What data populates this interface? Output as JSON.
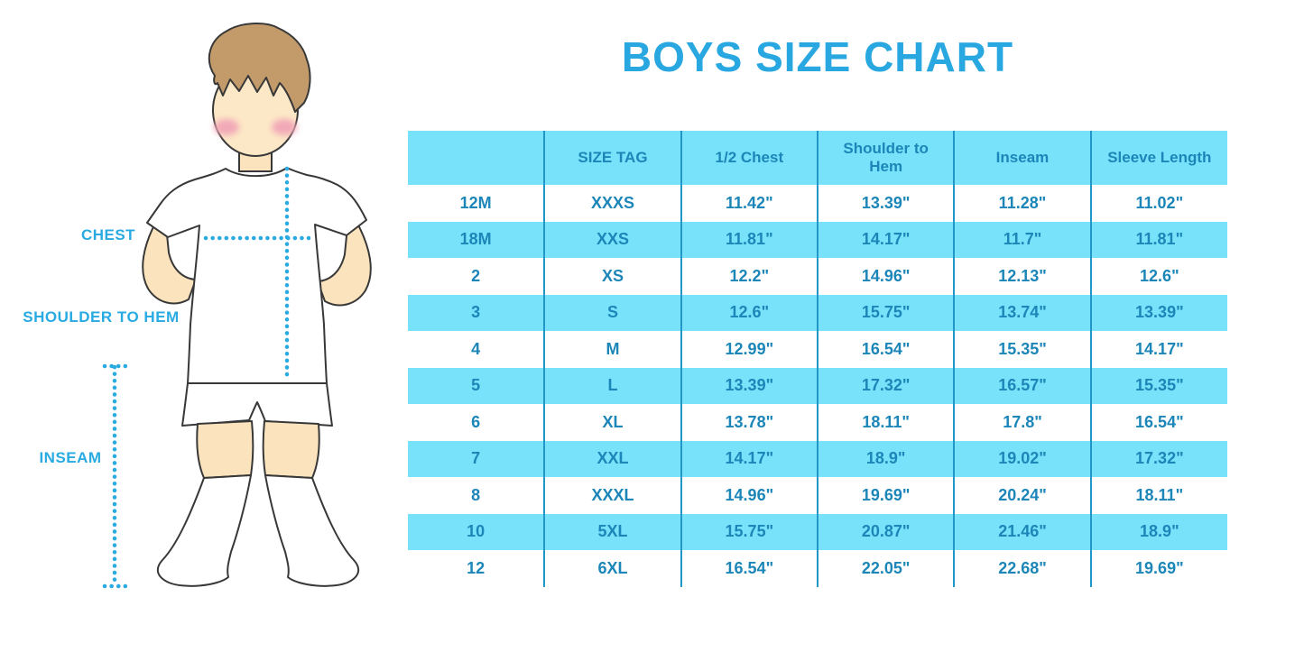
{
  "title": "BOYS SIZE CHART",
  "figure": {
    "labels": {
      "chest": "CHEST",
      "shoulder_to_hem": "SHOULDER TO HEM",
      "inseam": "INSEAM"
    }
  },
  "table": {
    "columns": [
      "",
      "SIZE TAG",
      "1/2 Chest",
      "Shoulder to Hem",
      "Inseam",
      "Sleeve Length"
    ],
    "rows": [
      [
        "12M",
        "XXXS",
        "11.42\"",
        "13.39\"",
        "11.28\"",
        "11.02\""
      ],
      [
        "18M",
        "XXS",
        "11.81\"",
        "14.17\"",
        "11.7\"",
        "11.81\""
      ],
      [
        "2",
        "XS",
        "12.2\"",
        "14.96\"",
        "12.13\"",
        "12.6\""
      ],
      [
        "3",
        "S",
        "12.6\"",
        "15.75\"",
        "13.74\"",
        "13.39\""
      ],
      [
        "4",
        "M",
        "12.99\"",
        "16.54\"",
        "15.35\"",
        "14.17\""
      ],
      [
        "5",
        "L",
        "13.39\"",
        "17.32\"",
        "16.57\"",
        "15.35\""
      ],
      [
        "6",
        "XL",
        "13.78\"",
        "18.11\"",
        "17.8\"",
        "16.54\""
      ],
      [
        "7",
        "XXL",
        "14.17\"",
        "18.9\"",
        "19.02\"",
        "17.32\""
      ],
      [
        "8",
        "XXXL",
        "14.96\"",
        "19.69\"",
        "20.24\"",
        "18.11\""
      ],
      [
        "10",
        "5XL",
        "15.75\"",
        "20.87\"",
        "21.46\"",
        "18.9\""
      ],
      [
        "12",
        "6XL",
        "16.54\"",
        "22.05\"",
        "22.68\"",
        "19.69\""
      ]
    ]
  },
  "colors": {
    "title_blue": "#29A7E0",
    "label_blue": "#29ABE2",
    "table_fill_cyan": "#78E2FA",
    "table_text_blue": "#1C86B8",
    "table_divider_blue": "#2097C6",
    "dotted_line_blue": "#29ABE2",
    "skin": "#FBE4BD",
    "hair": "#C39B6B",
    "cheek": "#F2A9B8",
    "outline": "#383838"
  }
}
